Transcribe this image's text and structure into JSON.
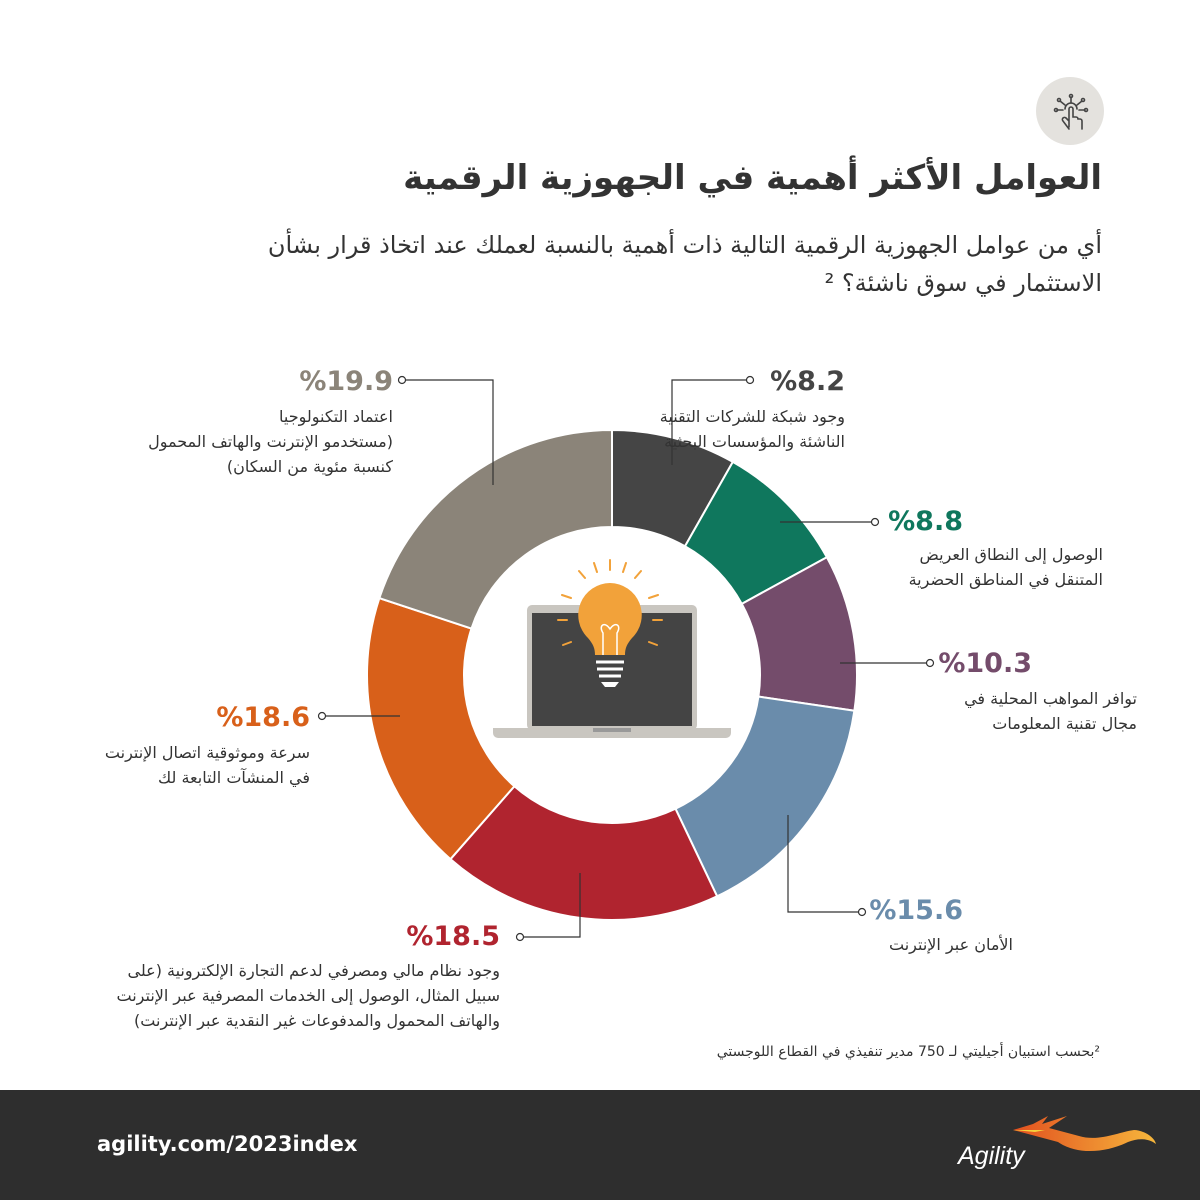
{
  "header": {
    "icon": "hand-pointer-network-icon",
    "title": "العوامل الأكثر أهمية في الجهوزية الرقمية",
    "subtitle": "أي من عوامل الجهوزية الرقمية التالية ذات أهمية بالنسبة لعملك عند اتخاذ قرار بشأن الاستثمار في سوق ناشئة؟ ²"
  },
  "chart_data": {
    "type": "pie",
    "variant": "donut",
    "order": "clockwise from top",
    "slices": [
      {
        "value": 8.2,
        "label_value": "%8.2",
        "lines": [
          "وجود شبكة للشركات التقنية",
          "الناشئة والمؤسسات البحثية"
        ],
        "color": "#454545"
      },
      {
        "value": 8.8,
        "label_value": "%8.8",
        "lines": [
          "الوصول إلى النطاق العريض",
          "المتنقل في المناطق الحضرية"
        ],
        "color": "#0f775d"
      },
      {
        "value": 10.3,
        "label_value": "%10.3",
        "lines": [
          "توافر المواهب المحلية في",
          "مجال تقنية المعلومات"
        ],
        "color": "#744c6b"
      },
      {
        "value": 15.6,
        "label_value": "%15.6",
        "lines": [
          "الأمان عبر الإنترنت"
        ],
        "color": "#6a8cab"
      },
      {
        "value": 18.5,
        "label_value": "%18.5",
        "lines": [
          "وجود نظام مالي ومصرفي لدعم التجارة الإلكترونية (على",
          "سبيل المثال، الوصول إلى الخدمات المصرفية عبر الإنترنت",
          "والهاتف المحمول والمدفوعات غير النقدية عبر الإنترنت)"
        ],
        "color": "#b0242f"
      },
      {
        "value": 18.6,
        "label_value": "%18.6",
        "lines": [
          "سرعة وموثوقية اتصال الإنترنت",
          "في المنشآت التابعة لك"
        ],
        "color": "#d8601a"
      },
      {
        "value": 19.9,
        "label_value": "%19.9",
        "lines": [
          "اعتماد التكنولوجيا",
          "(مستخدمو الإنترنت والهاتف المحمول",
          "كنسبة مئوية من السكان)"
        ],
        "color": "#8b8479"
      }
    ],
    "center_icon": "laptop-lightbulb-icon"
  },
  "footnote": "²بحسب استبيان أجيليتي لـ 750 مدير تنفيذي في القطاع اللوجستي",
  "footer": {
    "url": "agility.com/2023index",
    "brand": "Agility",
    "brand_icon": "agility-bird-logo"
  }
}
